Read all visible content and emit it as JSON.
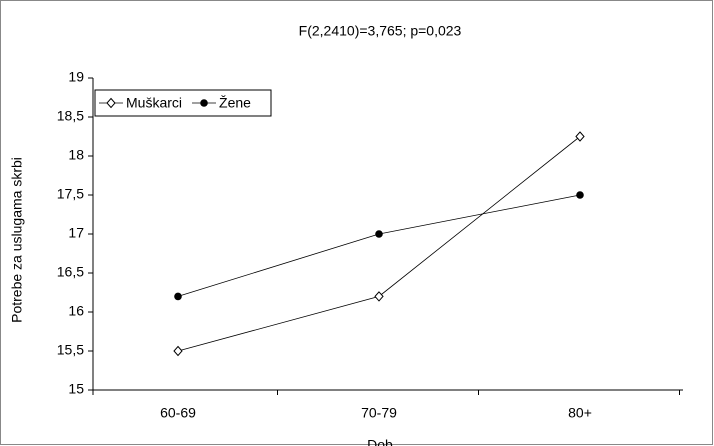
{
  "chart_data": {
    "type": "line",
    "title": "F(2,2410)=3,765; p=0,023",
    "x_label": "Dob",
    "y_label": "Potrebe za uslugama skrbi",
    "categories": [
      "60-69",
      "70-79",
      "80+"
    ],
    "series": [
      {
        "name": "Muškarci",
        "color": "#000000",
        "marker": "open-diamond",
        "values": [
          15.5,
          16.2,
          18.25
        ]
      },
      {
        "name": "Žene",
        "color": "#000000",
        "marker": "filled-circle",
        "values": [
          16.2,
          17.0,
          17.5
        ]
      }
    ],
    "ylim": [
      15,
      19
    ],
    "yticks": [
      15,
      {
        "value": 15.5,
        "label": "15,5"
      },
      16,
      {
        "value": 16.5,
        "label": "16,5"
      },
      17,
      {
        "value": 17.5,
        "label": "17,5"
      },
      18,
      {
        "value": 18.5,
        "label": "18,5"
      },
      19
    ],
    "grid": false,
    "legend": "upper-left"
  }
}
